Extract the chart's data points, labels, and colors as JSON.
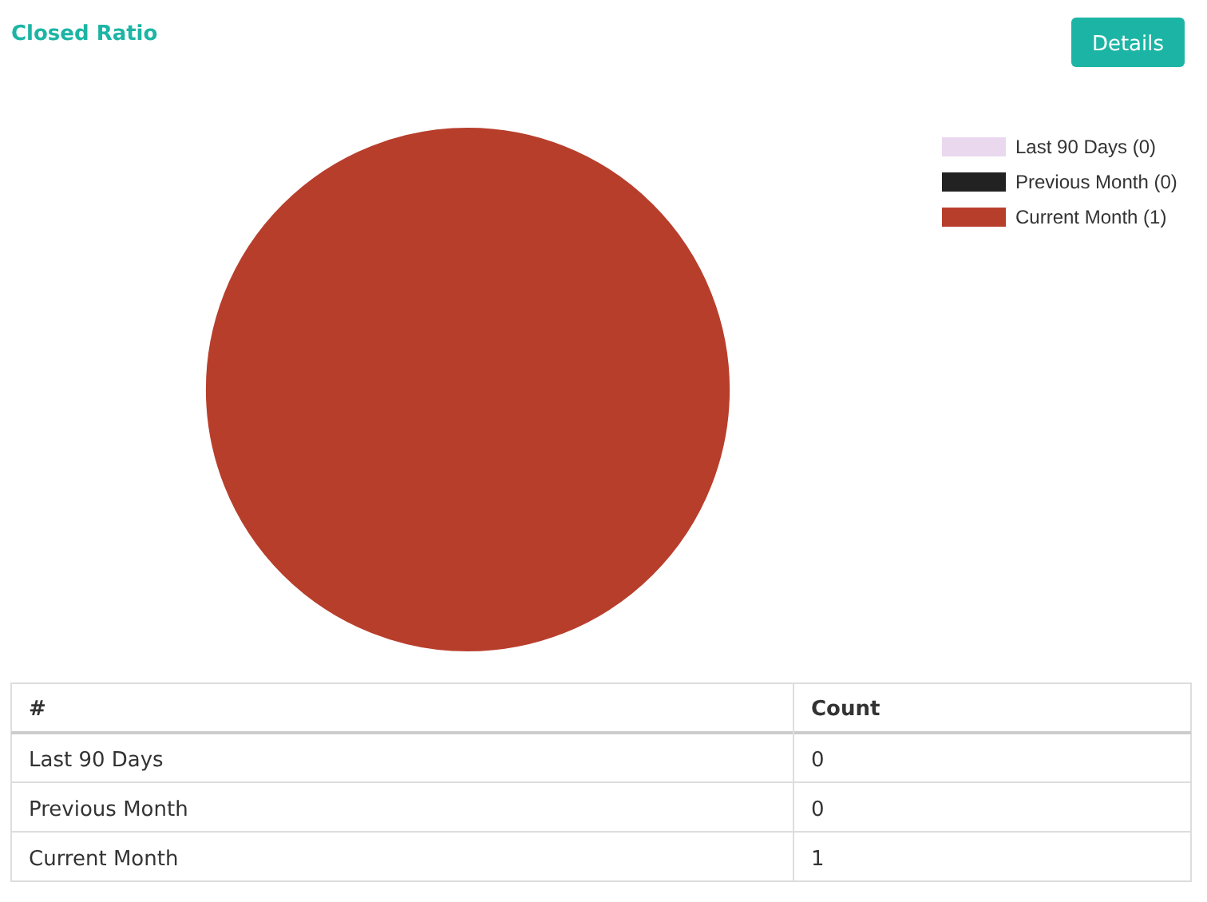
{
  "chart_data": [
    {
      "type": "pie",
      "title": "Closed Ratio",
      "categories": [
        "Last 90 Days",
        "Previous Month",
        "Current Month"
      ],
      "values": [
        0,
        0,
        1
      ],
      "value_labels": [
        "(0)",
        "(0)",
        "(1)"
      ],
      "colors": [
        "#ead8ef",
        "#222222",
        "#b83e2c"
      ],
      "legend": "top right",
      "annotations": [
        "Details"
      ]
    },
    {
      "type": "other",
      "categories": [
        "Last 90 Days",
        "Previous Month",
        "Current Month"
      ],
      "values": [
        0,
        0,
        1
      ],
      "data_labels": true,
      "annotations": [
        "#",
        "Count"
      ]
    }
  ]
}
